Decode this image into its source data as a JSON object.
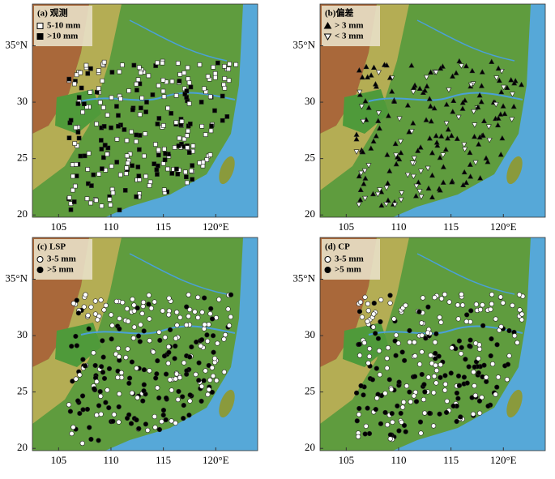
{
  "axes": {
    "xlim": [
      102.5,
      124
    ],
    "ylim": [
      19.8,
      38.7
    ],
    "xticks": [
      105,
      110,
      115,
      {
        "value": 120,
        "label": "120°E"
      }
    ],
    "yticks": [
      20,
      25,
      30,
      {
        "value": 35,
        "label": "35°N"
      }
    ]
  },
  "panels": [
    {
      "label": "(a) 观测",
      "marker": "square",
      "legend": [
        "5-10 mm",
        ">10 mm"
      ]
    },
    {
      "label": "(b)偏差",
      "marker": "triangle",
      "legend": [
        "> 3 mm",
        "< 3 mm"
      ]
    },
    {
      "label": "(c) LSP",
      "marker": "circle",
      "legend": [
        "3-5 mm",
        ">5 mm"
      ]
    },
    {
      "label": "(d) CP",
      "marker": "circle",
      "legend": [
        "3-5 mm",
        ">5 mm"
      ]
    }
  ]
}
